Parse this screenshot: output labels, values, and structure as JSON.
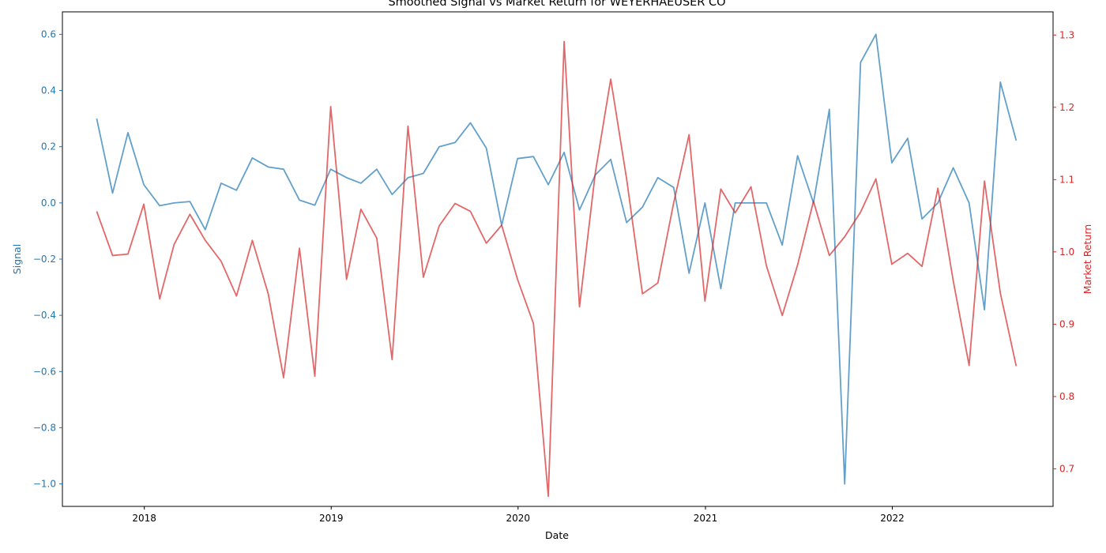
{
  "chart_data": {
    "type": "line",
    "title": "Smoothed Signal vs Market Return for WEYERHAEUSER CO",
    "xlabel": "Date",
    "ylabel_left": "Signal",
    "ylabel_right": "Market Return",
    "x_tick_labels": [
      "2018",
      "2019",
      "2020",
      "2021",
      "2022"
    ],
    "x_ticks": [
      "2018-01-01",
      "2019-01-01",
      "2020-01-01",
      "2021-01-01",
      "2022-01-01"
    ],
    "xlim": [
      "2017-07-25",
      "2022-11-11"
    ],
    "y_left_ticks": [
      "0.6",
      "0.4",
      "0.2",
      "0.0",
      "−0.2",
      "−0.4",
      "−0.6",
      "−0.8",
      "−1.0"
    ],
    "y_left_tick_values": [
      0.6,
      0.4,
      0.2,
      0.0,
      -0.2,
      -0.4,
      -0.6,
      -0.8,
      -1.0
    ],
    "y_left_lim": [
      -1.08,
      0.68
    ],
    "y_right_ticks": [
      "1.3",
      "1.2",
      "1.1",
      "1.0",
      "0.9",
      "0.8",
      "0.7"
    ],
    "y_right_tick_values": [
      1.3,
      1.2,
      1.1,
      1.0,
      0.9,
      0.8,
      0.7
    ],
    "y_right_lim": [
      0.648,
      1.332
    ],
    "grid": false,
    "x": [
      "2017-09-30",
      "2017-10-31",
      "2017-11-30",
      "2017-12-31",
      "2018-01-31",
      "2018-02-28",
      "2018-03-31",
      "2018-04-30",
      "2018-05-31",
      "2018-06-30",
      "2018-07-31",
      "2018-08-31",
      "2018-09-30",
      "2018-10-31",
      "2018-11-30",
      "2018-12-31",
      "2019-01-31",
      "2019-02-28",
      "2019-03-31",
      "2019-04-30",
      "2019-05-31",
      "2019-06-30",
      "2019-07-31",
      "2019-08-31",
      "2019-09-30",
      "2019-10-31",
      "2019-11-30",
      "2019-12-31",
      "2020-01-31",
      "2020-02-29",
      "2020-03-31",
      "2020-04-30",
      "2020-05-31",
      "2020-06-30",
      "2020-07-31",
      "2020-08-31",
      "2020-09-30",
      "2020-10-31",
      "2020-11-30",
      "2020-12-31",
      "2021-01-31",
      "2021-02-28",
      "2021-03-31",
      "2021-04-30",
      "2021-05-31",
      "2021-06-30",
      "2021-07-31",
      "2021-08-31",
      "2021-09-30",
      "2021-10-31",
      "2021-11-30",
      "2021-12-31",
      "2022-01-31",
      "2022-02-28",
      "2022-03-31",
      "2022-04-30",
      "2022-05-31",
      "2022-06-30",
      "2022-07-31",
      "2022-08-31"
    ],
    "series": [
      {
        "axis": "left",
        "color": "#1f77b4",
        "values": [
          0.3,
          0.035,
          0.25,
          0.065,
          -0.01,
          0.0,
          0.005,
          -0.095,
          0.07,
          0.045,
          0.16,
          0.128,
          0.12,
          0.01,
          -0.008,
          0.12,
          0.09,
          0.07,
          0.12,
          0.03,
          0.09,
          0.105,
          0.2,
          0.215,
          0.285,
          0.195,
          -0.08,
          0.158,
          0.165,
          0.065,
          0.18,
          -0.025,
          0.1,
          0.155,
          -0.07,
          -0.015,
          0.09,
          0.055,
          -0.25,
          0.0,
          -0.305,
          0.0,
          0.0,
          0.0,
          -0.15,
          0.168,
          0.0,
          0.333,
          -1.0,
          0.5,
          0.6,
          0.143,
          0.23,
          -0.057,
          0.0,
          0.125,
          0.0,
          -0.38,
          0.43,
          0.222
        ]
      },
      {
        "axis": "right",
        "color": "#d62728",
        "values": [
          1.056,
          0.995,
          0.997,
          1.066,
          0.935,
          1.01,
          1.052,
          1.016,
          0.987,
          0.939,
          1.016,
          0.942,
          0.826,
          1.005,
          0.828,
          1.201,
          0.962,
          1.059,
          1.019,
          0.851,
          1.174,
          0.965,
          1.036,
          1.067,
          1.056,
          1.012,
          1.037,
          0.962,
          0.901,
          0.662,
          1.291,
          0.924,
          1.11,
          1.239,
          1.101,
          0.942,
          0.957,
          1.068,
          1.162,
          0.932,
          1.087,
          1.054,
          1.09,
          0.981,
          0.912,
          0.982,
          1.07,
          0.995,
          1.021,
          1.055,
          1.101,
          0.983,
          0.998,
          0.98,
          1.088,
          0.96,
          0.843,
          1.098,
          0.943,
          0.842
        ]
      }
    ]
  }
}
